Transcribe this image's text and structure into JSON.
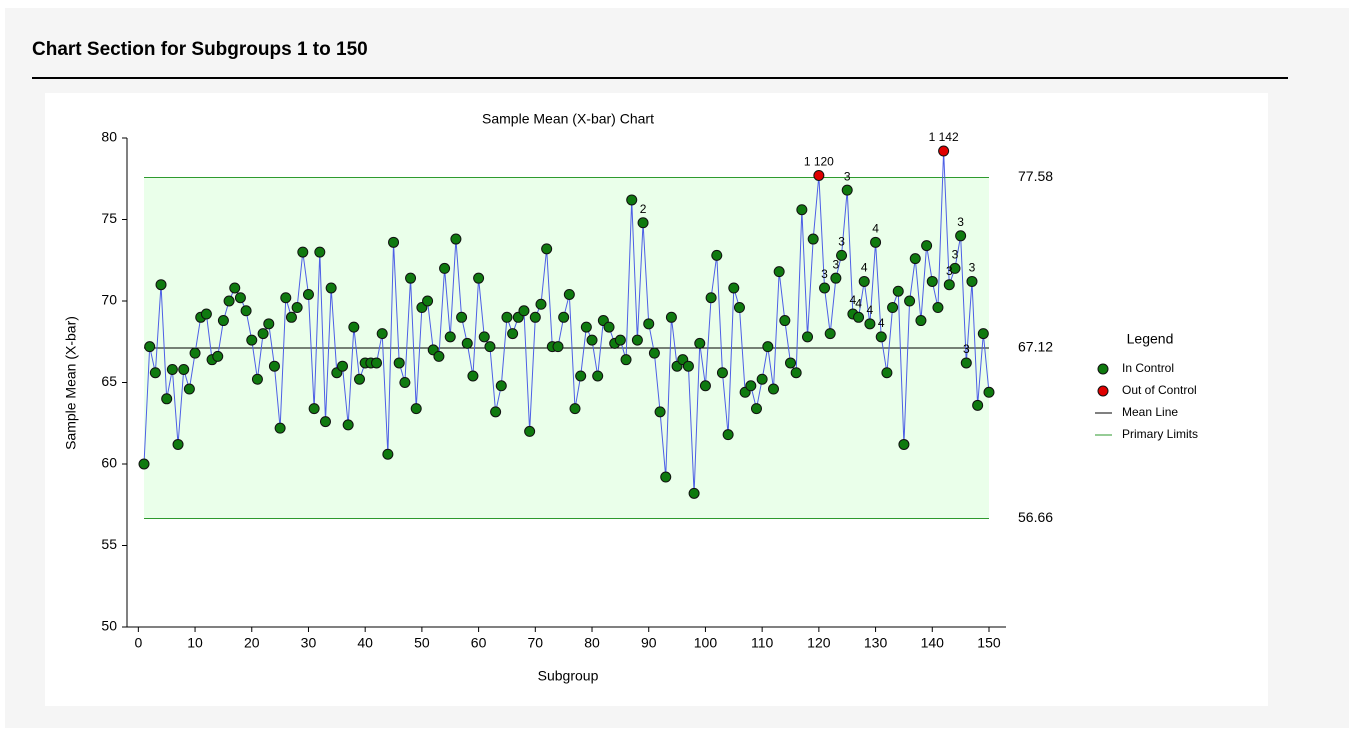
{
  "heading": "Chart Section for Subgroups 1 to 150",
  "chart_data": {
    "type": "control",
    "title": "Sample Mean (X-bar) Chart",
    "x_label": "Subgroup",
    "y_label": "Sample Mean (X-bar)",
    "x": [
      1,
      2,
      3,
      4,
      5,
      6,
      7,
      8,
      9,
      10,
      11,
      12,
      13,
      14,
      15,
      16,
      17,
      18,
      19,
      20,
      21,
      22,
      23,
      24,
      25,
      26,
      27,
      28,
      29,
      30,
      31,
      32,
      33,
      34,
      35,
      36,
      37,
      38,
      39,
      40,
      41,
      42,
      43,
      44,
      45,
      46,
      47,
      48,
      49,
      50,
      51,
      52,
      53,
      54,
      55,
      56,
      57,
      58,
      59,
      60,
      61,
      62,
      63,
      64,
      65,
      66,
      67,
      68,
      69,
      70,
      71,
      72,
      73,
      74,
      75,
      76,
      77,
      78,
      79,
      80,
      81,
      82,
      83,
      84,
      85,
      86,
      87,
      88,
      89,
      90,
      91,
      92,
      93,
      94,
      95,
      96,
      97,
      98,
      99,
      100,
      101,
      102,
      103,
      104,
      105,
      106,
      107,
      108,
      109,
      110,
      111,
      112,
      113,
      114,
      115,
      116,
      117,
      118,
      119,
      120,
      121,
      122,
      123,
      124,
      125,
      126,
      127,
      128,
      129,
      130,
      131,
      132,
      133,
      134,
      135,
      136,
      137,
      138,
      139,
      140,
      141,
      142,
      143,
      144,
      145,
      146,
      147,
      148,
      149,
      150
    ],
    "values": [
      60.0,
      67.2,
      65.6,
      71.0,
      64.0,
      65.8,
      61.2,
      65.8,
      64.6,
      66.8,
      69.0,
      69.2,
      66.4,
      66.6,
      68.8,
      70.0,
      70.8,
      70.2,
      69.4,
      67.6,
      65.2,
      68.0,
      68.6,
      66.0,
      62.2,
      70.2,
      69.0,
      69.6,
      73.0,
      70.4,
      63.4,
      73.0,
      62.6,
      70.8,
      65.6,
      66.0,
      62.4,
      68.4,
      65.2,
      66.2,
      66.2,
      66.2,
      68.0,
      60.6,
      73.6,
      66.2,
      65.0,
      71.4,
      63.4,
      69.6,
      70.0,
      67.0,
      66.6,
      72.0,
      67.8,
      73.8,
      69.0,
      67.4,
      65.4,
      71.4,
      67.8,
      67.2,
      63.2,
      64.8,
      69.0,
      68.0,
      69.0,
      69.4,
      62.0,
      69.0,
      69.8,
      73.2,
      67.2,
      67.2,
      69.0,
      70.4,
      63.4,
      65.4,
      68.4,
      67.6,
      65.4,
      68.8,
      68.4,
      67.4,
      67.6,
      66.4,
      76.2,
      67.6,
      74.8,
      68.6,
      66.8,
      63.2,
      59.2,
      69.0,
      66.0,
      66.4,
      66.0,
      58.2,
      67.4,
      64.8,
      70.2,
      72.8,
      65.6,
      61.8,
      70.8,
      69.6,
      64.4,
      64.8,
      63.4,
      65.2,
      67.2,
      64.6,
      71.8,
      68.8,
      66.2,
      65.6,
      75.6,
      67.8,
      73.8,
      77.7,
      70.8,
      68.0,
      71.4,
      72.8,
      76.8,
      69.2,
      69.0,
      71.2,
      68.6,
      73.6,
      67.8,
      65.6,
      69.6,
      70.6,
      61.2,
      70.0,
      72.6,
      68.8,
      73.4,
      71.2,
      69.6,
      79.2,
      71.0,
      72.0,
      74.0,
      66.2,
      71.2,
      63.6,
      68.0,
      64.4
    ],
    "ucl": 77.58,
    "center": 67.12,
    "lcl": 56.66,
    "in_color": "#0f7a0f",
    "out_color": "#e00000",
    "line_color": "#4d5fe6",
    "limit_color": "#2e9a2e",
    "mean_color": "#000000",
    "zone_color": "#eaffea",
    "annotations": [
      {
        "x": 120,
        "text": "1 120"
      },
      {
        "x": 142,
        "text": "1 142"
      },
      {
        "x": 89,
        "text": "2"
      },
      {
        "x": 121,
        "text": "3"
      },
      {
        "x": 123,
        "text": "3"
      },
      {
        "x": 124,
        "text": "3"
      },
      {
        "x": 125,
        "text": "3"
      },
      {
        "x": 126,
        "text": "4"
      },
      {
        "x": 127,
        "text": "4"
      },
      {
        "x": 128,
        "text": "4"
      },
      {
        "x": 129,
        "text": "4"
      },
      {
        "x": 130,
        "text": "4"
      },
      {
        "x": 131,
        "text": "4"
      },
      {
        "x": 143,
        "text": "3"
      },
      {
        "x": 144,
        "text": "3"
      },
      {
        "x": 145,
        "text": "3"
      },
      {
        "x": 146,
        "text": "3"
      },
      {
        "x": 147,
        "text": "3"
      }
    ],
    "legend": {
      "title": "Legend",
      "items": [
        "In Control",
        "Out of Control",
        "Mean Line",
        "Primary Limits"
      ]
    },
    "xlim": [
      -2,
      153
    ],
    "ylim": [
      50,
      80
    ],
    "xticks": [
      0,
      10,
      20,
      30,
      40,
      50,
      60,
      70,
      80,
      90,
      100,
      110,
      120,
      130,
      140,
      150
    ],
    "yticks": [
      50,
      55,
      60,
      65,
      70,
      75,
      80
    ]
  }
}
